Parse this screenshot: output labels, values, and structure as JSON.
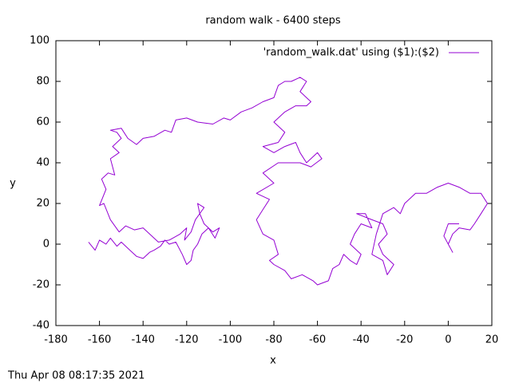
{
  "chart_data": {
    "type": "line",
    "title": "random walk - 6400 steps",
    "x_label": "x",
    "y_label": "y",
    "timestamp": "Thu Apr 08 08:17:35 2021",
    "legend": "top right",
    "xlim": [
      -180,
      20
    ],
    "ylim": [
      -40,
      100
    ],
    "xticks": [
      -180,
      -160,
      -140,
      -120,
      -100,
      -80,
      -60,
      -40,
      -20,
      0,
      20
    ],
    "yticks": [
      -40,
      -20,
      0,
      20,
      40,
      60,
      80,
      100
    ],
    "x": [
      -165,
      -162,
      -160,
      -157,
      -155,
      -152,
      -150,
      -147,
      -145,
      -143,
      -140,
      -137,
      -135,
      -132,
      -130,
      -128,
      -125,
      -122,
      -120,
      -118,
      -117,
      -115,
      -113,
      -110,
      -107,
      -105,
      -108,
      -112,
      -114,
      -115,
      -112,
      -116,
      -118,
      -121,
      -120,
      -123,
      -128,
      -133,
      -140,
      -144,
      -148,
      -151,
      -155,
      -158,
      -160,
      -157,
      -159,
      -156,
      -153,
      -155,
      -151,
      -154,
      -150,
      -152,
      -155,
      -150,
      -147,
      -143,
      -140,
      -135,
      -130,
      -127,
      -125,
      -120,
      -115,
      -108,
      -103,
      -100,
      -95,
      -90,
      -85,
      -80,
      -78,
      -75,
      -72,
      -68,
      -65,
      -68,
      -63,
      -65,
      -70,
      -75,
      -80,
      -75,
      -78,
      -85,
      -80,
      -75,
      -70,
      -68,
      -65,
      -60,
      -58,
      -63,
      -68,
      -78,
      -85,
      -80,
      -88,
      -82,
      -85,
      -88,
      -85,
      -80,
      -78,
      -82,
      -80,
      -75,
      -72,
      -67,
      -62,
      -60,
      -55,
      -53,
      -50,
      -48,
      -45,
      -42,
      -40,
      -45,
      -43,
      -40,
      -35,
      -38,
      -42,
      -35,
      -30,
      -28,
      -32,
      -30,
      -25,
      -28,
      -30,
      -35,
      -33,
      -30,
      -25,
      -22,
      -20,
      -15,
      -10,
      -5,
      0,
      5,
      10,
      15,
      18,
      15,
      12,
      10,
      5,
      2,
      0,
      2,
      -2,
      0,
      5
    ],
    "series": [
      {
        "name": "'random_walk.dat' using ($1):($2)",
        "color": "#9400d3",
        "values": [
          1,
          -3,
          2,
          0,
          3,
          -1,
          1,
          -2,
          -4,
          -6,
          -7,
          -4,
          -3,
          -1,
          2,
          0,
          1,
          -5,
          -10,
          -8,
          -3,
          0,
          5,
          8,
          3,
          8,
          6,
          10,
          15,
          20,
          18,
          12,
          6,
          2,
          8,
          5,
          2,
          1,
          8,
          7,
          9,
          6,
          12,
          20,
          19,
          27,
          32,
          35,
          34,
          42,
          45,
          48,
          52,
          55,
          56,
          57,
          52,
          49,
          52,
          53,
          56,
          55,
          61,
          62,
          60,
          59,
          62,
          61,
          65,
          67,
          70,
          72,
          78,
          80,
          80,
          82,
          80,
          75,
          70,
          68,
          68,
          65,
          60,
          55,
          50,
          48,
          45,
          48,
          50,
          45,
          40,
          45,
          42,
          38,
          40,
          40,
          35,
          30,
          25,
          22,
          17,
          12,
          5,
          2,
          -5,
          -8,
          -10,
          -13,
          -17,
          -15,
          -18,
          -20,
          -18,
          -12,
          -10,
          -5,
          -8,
          -10,
          -5,
          0,
          5,
          10,
          8,
          15,
          15,
          12,
          10,
          5,
          0,
          -5,
          -10,
          -15,
          -8,
          -5,
          5,
          15,
          18,
          15,
          20,
          25,
          25,
          28,
          30,
          28,
          25,
          25,
          20,
          15,
          10,
          7,
          8,
          5,
          0,
          -4,
          4,
          10,
          10
        ]
      }
    ]
  }
}
